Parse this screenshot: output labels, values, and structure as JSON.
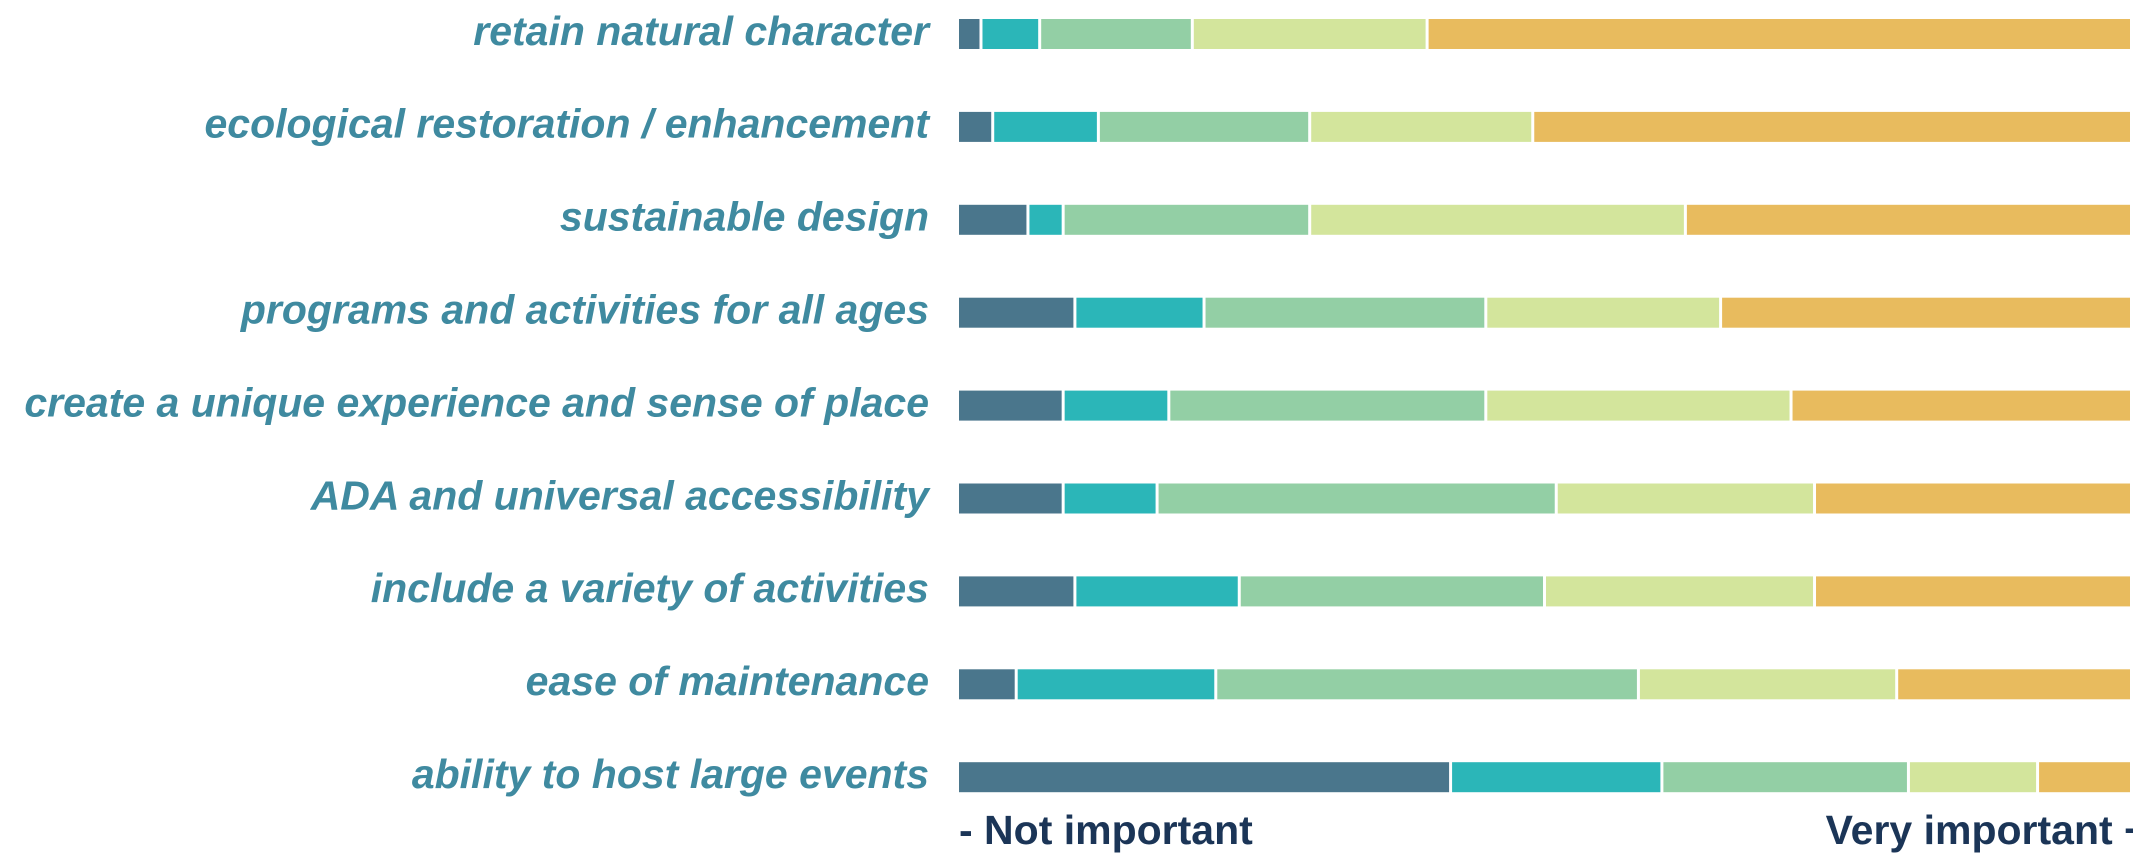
{
  "chart_data": {
    "type": "stacked_bar_horizontal",
    "categories": [
      "retain natural character",
      "ecological restoration / enhancement",
      "sustainable design",
      "programs and activities for all ages",
      "create a unique experience and sense of place",
      "ADA and universal accessibility",
      "include a variety of activities",
      "ease of maintenance",
      "ability to host large events"
    ],
    "series": [
      {
        "color": "#4a768c",
        "values": [
          2,
          3,
          6,
          10,
          9,
          9,
          10,
          5,
          42
        ]
      },
      {
        "color": "#2bb6b8",
        "values": [
          5,
          9,
          3,
          11,
          9,
          8,
          14,
          17,
          18
        ]
      },
      {
        "color": "#93cfa5",
        "values": [
          13,
          18,
          21,
          24,
          27,
          34,
          26,
          36,
          21
        ]
      },
      {
        "color": "#d3e59c",
        "values": [
          20,
          19,
          32,
          20,
          26,
          22,
          23,
          22,
          11
        ]
      },
      {
        "color": "#e8bb5e",
        "values": [
          60,
          51,
          38,
          35,
          29,
          27,
          27,
          20,
          8
        ]
      }
    ],
    "xlim": [
      0,
      100
    ],
    "scale_low_label": "- Not important",
    "scale_high_label": "Very important +"
  }
}
